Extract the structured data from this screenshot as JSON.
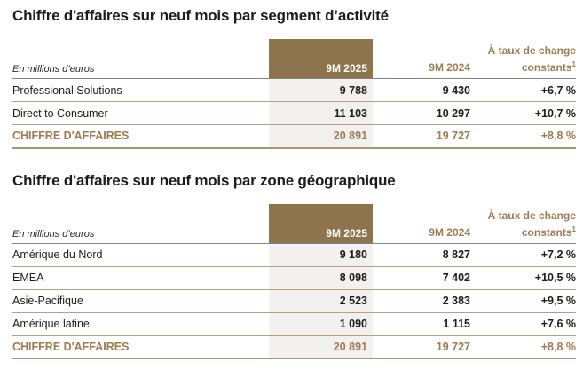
{
  "colors": {
    "accent_brown_bg": "#8e744c",
    "accent_brown_text": "#9e7c50",
    "highlight_column_bg": "#f2f1ef",
    "row_border": "#b3a27c",
    "header_border": "#85847e",
    "title_text": "#1c1c1e"
  },
  "tables": [
    {
      "title": "Chiffre d'affaires sur neuf mois par segment d’activité",
      "unit_label": "En millions d’euros",
      "header": {
        "col_2025": "9M 2025",
        "col_2024": "9M 2024",
        "change_line1": "À taux de change",
        "change_line2": "constants",
        "change_sup": "1"
      },
      "rows": [
        {
          "label": "Professional Solutions",
          "v2025": "9 788",
          "v2024": "9 430",
          "change": "+6,7 %"
        },
        {
          "label": "Direct to Consumer",
          "v2025": "11 103",
          "v2024": "10 297",
          "change": "+10,7 %"
        }
      ],
      "total": {
        "label": "CHIFFRE D'AFFAIRES",
        "v2025": "20 891",
        "v2024": "19 727",
        "change": "+8,8 %"
      }
    },
    {
      "title": "Chiffre d'affaires sur neuf mois par zone géographique",
      "unit_label": "En millions d’euros",
      "header": {
        "col_2025": "9M 2025",
        "col_2024": "9M 2024",
        "change_line1": "À taux de change",
        "change_line2": "constants",
        "change_sup": "1"
      },
      "rows": [
        {
          "label": "Amérique du Nord",
          "v2025": "9 180",
          "v2024": "8 827",
          "change": "+7,2 %"
        },
        {
          "label": "EMEA",
          "v2025": "8 098",
          "v2024": "7 402",
          "change": "+10,5 %"
        },
        {
          "label": "Asie-Pacifique",
          "v2025": "2 523",
          "v2024": "2 383",
          "change": "+9,5 %"
        },
        {
          "label": "Amérique latine",
          "v2025": "1 090",
          "v2024": "1 115",
          "change": "+7,6 %"
        }
      ],
      "total": {
        "label": "CHIFFRE D'AFFAIRES",
        "v2025": "20 891",
        "v2024": "19 727",
        "change": "+8,8 %"
      }
    }
  ]
}
